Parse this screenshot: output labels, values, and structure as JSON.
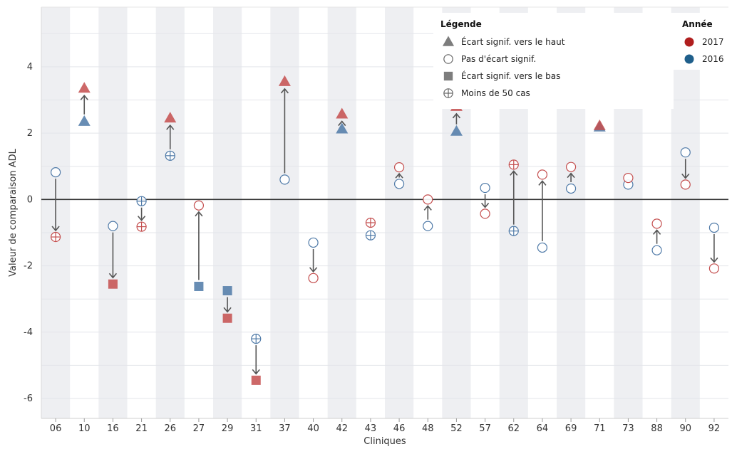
{
  "chart_data": {
    "type": "scatter",
    "xlabel": "Cliniques",
    "ylabel": "Valeur de comparaison ADL",
    "ylim": [
      -6.6,
      5.8
    ],
    "yticks": [
      4,
      2,
      0,
      -2,
      -4,
      -6
    ],
    "ytick_labels": [
      "4",
      "2",
      "0",
      "-2",
      "-4",
      "-6"
    ],
    "grid": true,
    "categories": [
      "06",
      "10",
      "16",
      "21",
      "26",
      "27",
      "29",
      "31",
      "37",
      "40",
      "42",
      "43",
      "46",
      "48",
      "52",
      "57",
      "62",
      "64",
      "69",
      "71",
      "73",
      "88",
      "90",
      "92"
    ],
    "series": [
      {
        "name": "2016",
        "color": "#4e79a7",
        "values": [
          0.82,
          2.35,
          -0.8,
          -0.05,
          1.32,
          -2.62,
          -2.75,
          -4.2,
          0.6,
          -1.3,
          2.12,
          -1.08,
          0.47,
          -0.8,
          2.05,
          0.35,
          -0.95,
          -1.45,
          0.33,
          2.18,
          0.45,
          -1.53,
          1.42,
          -0.85
        ],
        "markers": [
          "circle",
          "triangle",
          "circle",
          "plus",
          "plus",
          "square",
          "square",
          "plus",
          "circle",
          "circle",
          "triangle",
          "plus",
          "circle",
          "circle",
          "triangle",
          "circle",
          "plus",
          "circle",
          "circle",
          "triangle",
          "circle",
          "circle",
          "circle",
          "circle"
        ]
      },
      {
        "name": "2017",
        "color": "#c44e4e",
        "values": [
          -1.13,
          3.35,
          -2.55,
          -0.82,
          2.45,
          -0.18,
          -3.58,
          -5.45,
          3.55,
          -2.37,
          2.57,
          -0.7,
          0.97,
          0.0,
          2.8,
          -0.43,
          1.05,
          0.75,
          0.98,
          2.22,
          0.65,
          -0.73,
          0.45,
          -2.08
        ],
        "markers": [
          "plus",
          "triangle",
          "square",
          "plus",
          "triangle",
          "circle",
          "square",
          "square",
          "triangle",
          "circle",
          "triangle",
          "plus",
          "circle",
          "circle",
          "triangle",
          "circle",
          "plus",
          "circle",
          "circle",
          "triangle",
          "circle",
          "circle",
          "circle",
          "circle"
        ]
      }
    ],
    "legend": {
      "shape_title": "Légende",
      "shape_items": [
        {
          "shape": "triangle",
          "label": "Écart signif. vers le haut"
        },
        {
          "shape": "circle",
          "label": "Pas d'écart signif."
        },
        {
          "shape": "square",
          "label": "Écart signif. vers le bas"
        },
        {
          "shape": "plus",
          "label": "Moins de 50 cas"
        }
      ],
      "year_title": "Année",
      "year_items": [
        {
          "label": "2017",
          "color": "#b01e1e"
        },
        {
          "label": "2016",
          "color": "#1f5f8b"
        }
      ],
      "placement": "top-right"
    },
    "colors": {
      "band": "#eeeff2",
      "zero_line": "#333333",
      "arrow": "#555555",
      "shape_legend_marker": "#666666"
    }
  }
}
